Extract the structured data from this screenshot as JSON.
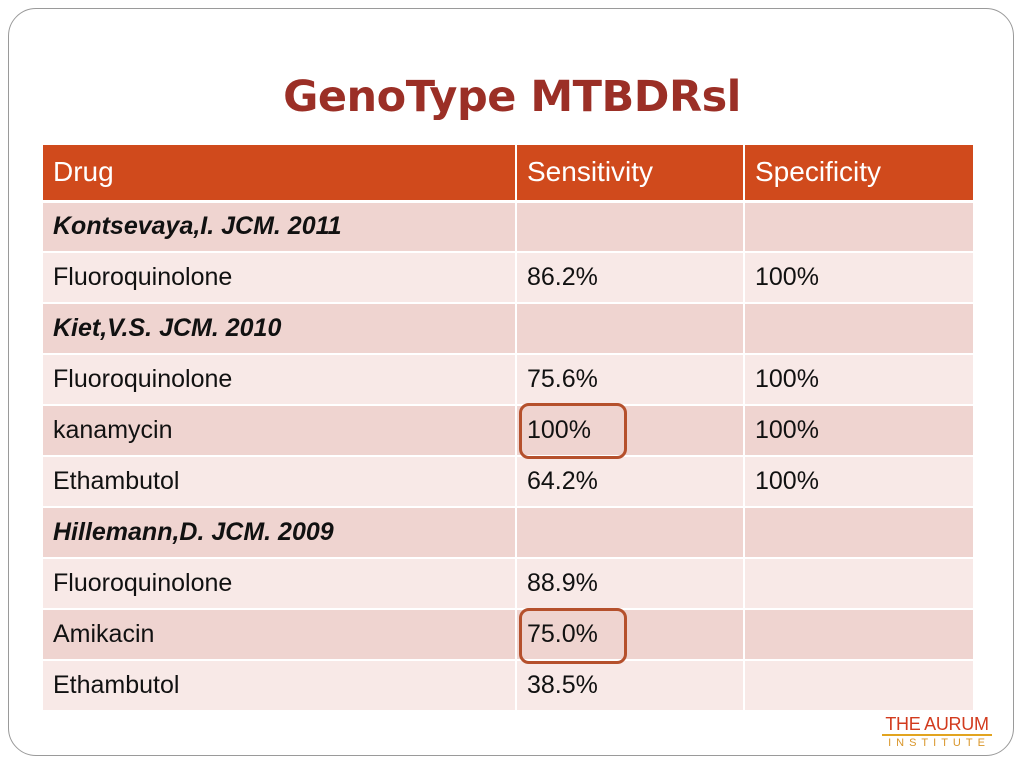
{
  "slide": {
    "title": "GenoType MTBDRsl"
  },
  "table": {
    "headers": [
      "Drug",
      "Sensitivity",
      "Specificity"
    ],
    "rows": [
      {
        "drug": "Kontsevaya,I. JCM. 2011",
        "sensitivity": "",
        "specificity": "",
        "is_study": true
      },
      {
        "drug": "Fluoroquinolone",
        "sensitivity": "86.2%",
        "specificity": "100%",
        "is_study": false
      },
      {
        "drug": "Kiet,V.S. JCM. 2010",
        "sensitivity": "",
        "specificity": "",
        "is_study": true
      },
      {
        "drug": "Fluoroquinolone",
        "sensitivity": "75.6%",
        "specificity": "100%",
        "is_study": false
      },
      {
        "drug": "kanamycin",
        "sensitivity": "100%",
        "specificity": "100%",
        "is_study": false,
        "highlighted": true
      },
      {
        "drug": "Ethambutol",
        "sensitivity": "64.2%",
        "specificity": "100%",
        "is_study": false
      },
      {
        "drug": "Hillemann,D. JCM. 2009",
        "sensitivity": "",
        "specificity": "",
        "is_study": true
      },
      {
        "drug": "Fluoroquinolone",
        "sensitivity": "88.9%",
        "specificity": "",
        "is_study": false
      },
      {
        "drug": "Amikacin",
        "sensitivity": "75.0%",
        "specificity": "",
        "is_study": false,
        "highlighted": true
      },
      {
        "drug": "Ethambutol",
        "sensitivity": "38.5%",
        "specificity": "",
        "is_study": false
      }
    ]
  },
  "logo": {
    "main": "THE AURUM",
    "sub": "INSTITUTE"
  },
  "colors": {
    "title": "#9b2f26",
    "header_bg": "#d04a1c",
    "row_odd": "#efd4d0",
    "row_even": "#f8e9e7",
    "highlight_border": "#b5502c",
    "logo_red": "#d23b1e",
    "logo_gold": "#d9962a"
  }
}
